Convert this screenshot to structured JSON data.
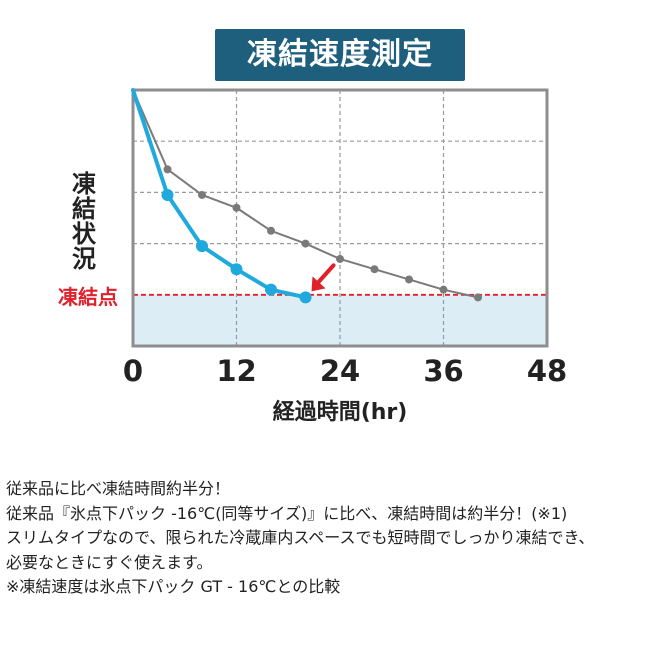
{
  "chart_data": {
    "type": "line",
    "title": "凍結速度測定",
    "xlabel": "経過時間(hr)",
    "ylabel": "凍結状況",
    "x_ticks": [
      0,
      12,
      24,
      36,
      48
    ],
    "xlim": [
      0,
      48
    ],
    "ylim": [
      0,
      10
    ],
    "grid": true,
    "freeze_point": {
      "label": "凍結点",
      "y": 2,
      "color": "#e0202a"
    },
    "frozen_zone_color": "#dcedf6",
    "series": [
      {
        "color": "#1fa9dc",
        "x": [
          0,
          4,
          8,
          12,
          16,
          20
        ],
        "y": [
          10,
          5.9,
          3.9,
          3.0,
          2.2,
          1.9
        ]
      },
      {
        "color": "#7a7a7a",
        "x": [
          0,
          4,
          8,
          12,
          16,
          20,
          24,
          28,
          32,
          36,
          40
        ],
        "y": [
          10,
          6.9,
          5.9,
          5.4,
          4.5,
          4.0,
          3.4,
          3.0,
          2.6,
          2.2,
          1.9
        ]
      }
    ],
    "annotation_arrow_color": "#e0202a"
  },
  "description": {
    "lines": [
      "従来品に比べ凍結時間約半分！",
      "従来品『氷点下パック -16℃(同等サイズ)』に比べ、凍結時間は約半分！(※1)",
      "スリムタイプなので、限られた冷蔵庫内スペースでも短時間でしっかり凍結でき、",
      "必要なときにすぐ使えます。",
      "※凍結速度は氷点下パック GT - 16℃との比較"
    ]
  }
}
